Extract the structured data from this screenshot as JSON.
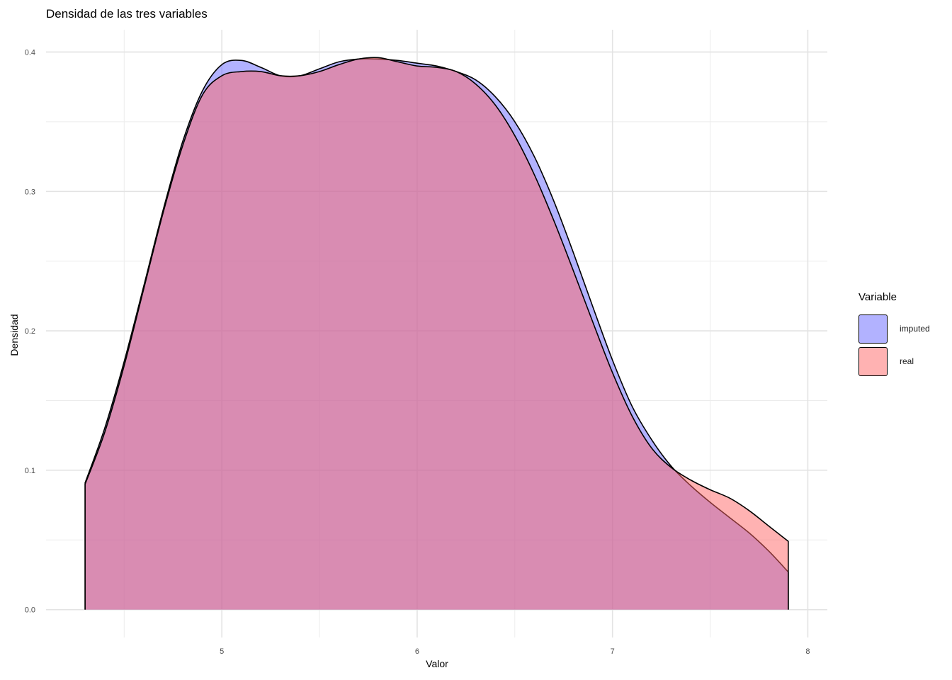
{
  "chart_data": {
    "type": "area",
    "title": "Densidad de las tres variables",
    "xlabel": "Valor",
    "ylabel": "Densidad",
    "xlim": [
      4.1,
      8.1
    ],
    "ylim": [
      -0.02,
      0.416
    ],
    "xticks": [
      5,
      6,
      7,
      8
    ],
    "yticks": [
      0.0,
      0.1,
      0.2,
      0.3,
      0.4
    ],
    "grid": true,
    "legend_title": "Variable",
    "legend_position": "right",
    "series": [
      {
        "name": "imputed",
        "color": "#6666ff",
        "x": [
          4.3,
          4.4,
          4.5,
          4.6,
          4.7,
          4.8,
          4.9,
          5.0,
          5.1,
          5.2,
          5.3,
          5.4,
          5.5,
          5.6,
          5.7,
          5.8,
          5.9,
          6.0,
          6.1,
          6.2,
          6.3,
          6.4,
          6.5,
          6.6,
          6.7,
          6.8,
          6.9,
          7.0,
          7.1,
          7.2,
          7.3,
          7.4,
          7.5,
          7.6,
          7.7,
          7.8,
          7.9
        ],
        "values": [
          0.091,
          0.13,
          0.178,
          0.232,
          0.287,
          0.336,
          0.372,
          0.391,
          0.394,
          0.389,
          0.383,
          0.383,
          0.388,
          0.393,
          0.395,
          0.395,
          0.394,
          0.392,
          0.39,
          0.386,
          0.38,
          0.368,
          0.35,
          0.325,
          0.293,
          0.256,
          0.217,
          0.179,
          0.146,
          0.122,
          0.103,
          0.089,
          0.077,
          0.066,
          0.055,
          0.042,
          0.027
        ]
      },
      {
        "name": "real",
        "color": "#ff6666",
        "x": [
          4.3,
          4.4,
          4.5,
          4.6,
          4.7,
          4.8,
          4.9,
          5.0,
          5.1,
          5.2,
          5.3,
          5.4,
          5.5,
          5.6,
          5.7,
          5.8,
          5.9,
          6.0,
          6.1,
          6.2,
          6.3,
          6.4,
          6.5,
          6.6,
          6.7,
          6.8,
          6.9,
          7.0,
          7.1,
          7.2,
          7.3,
          7.4,
          7.5,
          7.6,
          7.7,
          7.8,
          7.9
        ],
        "values": [
          0.09,
          0.127,
          0.175,
          0.23,
          0.285,
          0.333,
          0.369,
          0.383,
          0.386,
          0.386,
          0.383,
          0.383,
          0.386,
          0.391,
          0.395,
          0.396,
          0.393,
          0.39,
          0.389,
          0.386,
          0.377,
          0.362,
          0.34,
          0.312,
          0.279,
          0.243,
          0.206,
          0.17,
          0.139,
          0.116,
          0.102,
          0.093,
          0.086,
          0.08,
          0.071,
          0.06,
          0.049
        ]
      }
    ]
  }
}
